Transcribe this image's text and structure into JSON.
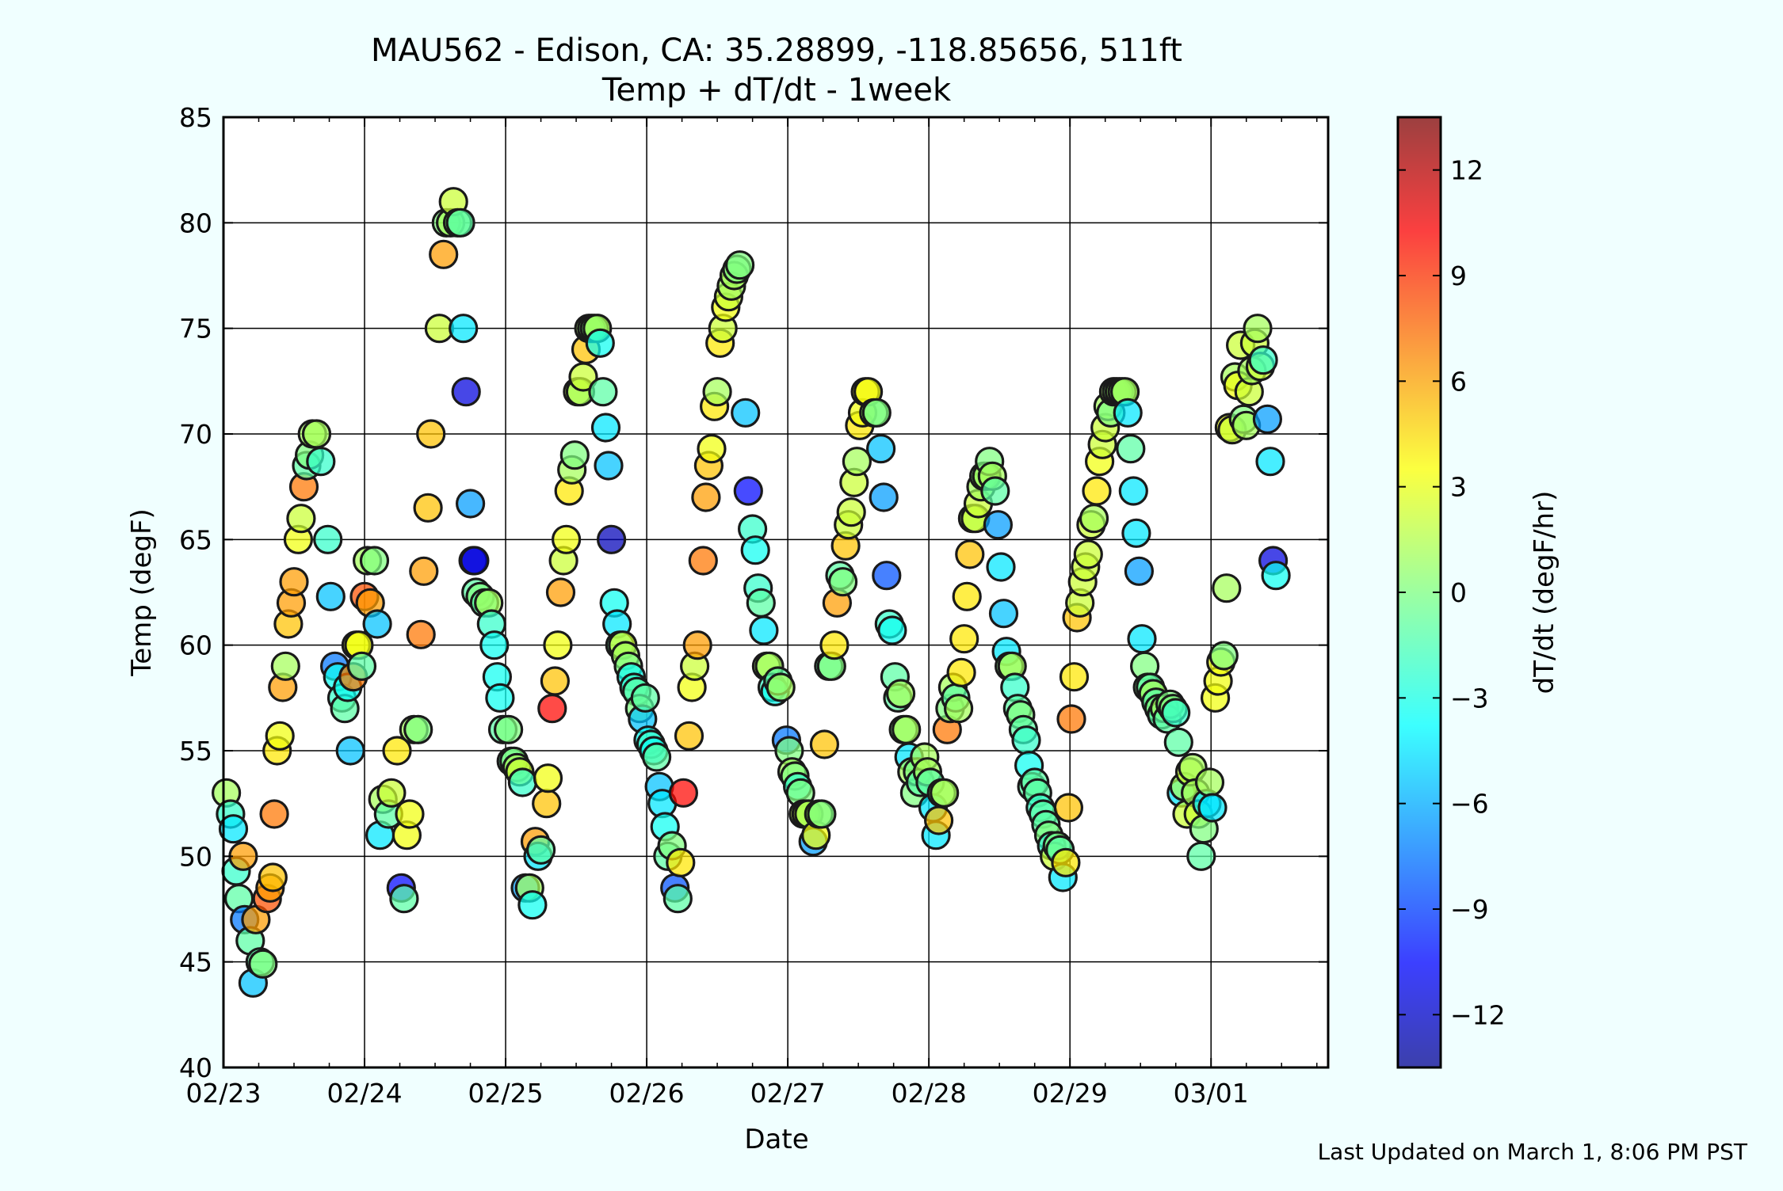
{
  "chart_data": {
    "type": "scatter",
    "title": "MAU562 - Edison, CA: 35.28899, -118.85656, 511ft",
    "subtitle": "Temp + dT/dt - 1week",
    "xlabel": "Date",
    "ylabel": "Temp (degF)",
    "colorbar_label": "dT/dt (degF/hr)",
    "footer": "Last Updated on March 1, 8:06 PM PST",
    "x_ticks": [
      "02/23",
      "02/24",
      "02/25",
      "02/26",
      "02/27",
      "02/28",
      "02/29",
      "03/01"
    ],
    "xlim_days": [
      0,
      7.83
    ],
    "ylim": [
      40,
      85
    ],
    "y_ticks": [
      40,
      45,
      50,
      55,
      60,
      65,
      70,
      75,
      80,
      85
    ],
    "colorbar_range": [
      -13.5,
      13.5
    ],
    "colorbar_ticks": [
      -12,
      -9,
      -6,
      -3,
      0,
      3,
      6,
      9,
      12
    ],
    "colorbar_tick_labels": [
      "−12",
      "−9",
      "−6",
      "−3",
      "0",
      "3",
      "6",
      "9",
      "12"
    ],
    "colormap": "jet",
    "grid": true,
    "points": [
      [
        0.02,
        53,
        1
      ],
      [
        0.05,
        52,
        -2
      ],
      [
        0.07,
        51.3,
        -4
      ],
      [
        0.09,
        49.3,
        -2
      ],
      [
        0.11,
        48,
        -1
      ],
      [
        0.14,
        50,
        6
      ],
      [
        0.15,
        47,
        -7
      ],
      [
        0.19,
        46,
        -1
      ],
      [
        0.21,
        44,
        -5
      ],
      [
        0.23,
        47,
        6
      ],
      [
        0.26,
        45,
        -1
      ],
      [
        0.28,
        44.9,
        0
      ],
      [
        0.31,
        48,
        8
      ],
      [
        0.33,
        48.5,
        6
      ],
      [
        0.35,
        49,
        5
      ],
      [
        0.36,
        52,
        7
      ],
      [
        0.38,
        55,
        4
      ],
      [
        0.4,
        55.7,
        3
      ],
      [
        0.42,
        58,
        6
      ],
      [
        0.44,
        59,
        1
      ],
      [
        0.46,
        61,
        5
      ],
      [
        0.48,
        62,
        6
      ],
      [
        0.5,
        63,
        6
      ],
      [
        0.53,
        65,
        3
      ],
      [
        0.55,
        66,
        2
      ],
      [
        0.57,
        67.5,
        7
      ],
      [
        0.59,
        68.5,
        -1
      ],
      [
        0.61,
        69,
        0
      ],
      [
        0.63,
        70,
        1
      ],
      [
        0.66,
        70,
        1
      ],
      [
        0.69,
        68.7,
        -2
      ],
      [
        0.74,
        65,
        -2
      ],
      [
        0.76,
        62.3,
        -5
      ],
      [
        0.79,
        59,
        -7
      ],
      [
        0.81,
        58.5,
        -3
      ],
      [
        0.84,
        57.5,
        -2
      ],
      [
        0.86,
        57,
        -1
      ],
      [
        0.88,
        58,
        -3
      ],
      [
        0.9,
        55,
        -5
      ],
      [
        0.92,
        58.5,
        7
      ],
      [
        0.94,
        60,
        3
      ],
      [
        0.96,
        60,
        3
      ],
      [
        0.98,
        59,
        -1
      ],
      [
        1.0,
        62.3,
        8
      ],
      [
        1.02,
        64,
        1
      ],
      [
        1.04,
        62,
        6
      ],
      [
        1.07,
        64,
        0
      ],
      [
        1.09,
        61,
        -5
      ],
      [
        1.11,
        51,
        -4
      ],
      [
        1.13,
        52.7,
        1
      ],
      [
        1.17,
        52,
        -1
      ],
      [
        1.19,
        53,
        2
      ],
      [
        1.23,
        55,
        4
      ],
      [
        1.26,
        48.5,
        -10
      ],
      [
        1.28,
        48,
        -1
      ],
      [
        1.3,
        51,
        3
      ],
      [
        1.32,
        52,
        3
      ],
      [
        1.35,
        56,
        1
      ],
      [
        1.38,
        56,
        0
      ],
      [
        1.4,
        60.5,
        7
      ],
      [
        1.42,
        63.5,
        6
      ],
      [
        1.45,
        66.5,
        5
      ],
      [
        1.47,
        70,
        5
      ],
      [
        1.53,
        75,
        2
      ],
      [
        1.56,
        78.5,
        6
      ],
      [
        1.58,
        80,
        0
      ],
      [
        1.61,
        80,
        1
      ],
      [
        1.63,
        81,
        2
      ],
      [
        1.66,
        80,
        0
      ],
      [
        1.68,
        80,
        -1
      ],
      [
        1.7,
        75,
        -4
      ],
      [
        1.72,
        72,
        -11
      ],
      [
        1.75,
        66.7,
        -6
      ],
      [
        1.77,
        64,
        -11
      ],
      [
        1.78,
        64,
        -11
      ],
      [
        1.79,
        62.5,
        -1
      ],
      [
        1.82,
        62.3,
        0
      ],
      [
        1.85,
        62,
        -1
      ],
      [
        1.88,
        62,
        1
      ],
      [
        1.9,
        61,
        -2
      ],
      [
        1.92,
        60,
        -3
      ],
      [
        1.94,
        58.5,
        -3
      ],
      [
        1.96,
        57.5,
        -3
      ],
      [
        1.98,
        56,
        -1
      ],
      [
        2.02,
        56,
        0
      ],
      [
        2.04,
        54.5,
        -1
      ],
      [
        2.06,
        54.5,
        0
      ],
      [
        2.08,
        54.2,
        1
      ],
      [
        2.1,
        54,
        2
      ],
      [
        2.12,
        53.5,
        -2
      ],
      [
        2.14,
        48.5,
        -6
      ],
      [
        2.17,
        48.5,
        1
      ],
      [
        2.19,
        47.7,
        -3
      ],
      [
        2.21,
        50.7,
        6
      ],
      [
        2.23,
        50,
        -4
      ],
      [
        2.25,
        50.3,
        -1
      ],
      [
        2.29,
        52.5,
        5
      ],
      [
        2.3,
        53.7,
        3
      ],
      [
        2.33,
        57,
        10
      ],
      [
        2.35,
        58.3,
        5
      ],
      [
        2.37,
        60,
        3
      ],
      [
        2.39,
        62.5,
        6
      ],
      [
        2.41,
        64,
        2
      ],
      [
        2.43,
        65,
        3
      ],
      [
        2.45,
        67.3,
        4
      ],
      [
        2.47,
        68.3,
        1
      ],
      [
        2.49,
        69,
        0
      ],
      [
        2.51,
        72,
        2
      ],
      [
        2.53,
        72,
        1
      ],
      [
        2.55,
        72.7,
        2
      ],
      [
        2.57,
        74,
        5
      ],
      [
        2.59,
        75,
        1
      ],
      [
        2.61,
        75,
        0
      ],
      [
        2.63,
        75,
        0
      ],
      [
        2.65,
        75,
        1
      ],
      [
        2.67,
        74.3,
        -3
      ],
      [
        2.69,
        72,
        -1
      ],
      [
        2.71,
        70.3,
        -4
      ],
      [
        2.73,
        68.5,
        -5
      ],
      [
        2.75,
        65,
        -12
      ],
      [
        2.77,
        62,
        -3
      ],
      [
        2.79,
        61,
        -4
      ],
      [
        2.81,
        60,
        -1
      ],
      [
        2.83,
        60,
        2
      ],
      [
        2.85,
        59.5,
        1
      ],
      [
        2.87,
        59,
        0
      ],
      [
        2.89,
        58.5,
        -3
      ],
      [
        2.91,
        58,
        -2
      ],
      [
        2.93,
        57.8,
        -1
      ],
      [
        2.95,
        57,
        0
      ],
      [
        2.97,
        56.5,
        -5
      ],
      [
        2.99,
        57.5,
        -1
      ],
      [
        3.01,
        55.5,
        -3
      ],
      [
        3.03,
        55.3,
        -2
      ],
      [
        3.05,
        55,
        -3
      ],
      [
        3.07,
        54.7,
        -1
      ],
      [
        3.09,
        53.3,
        -5
      ],
      [
        3.11,
        52.5,
        -4
      ],
      [
        3.13,
        51.4,
        -3
      ],
      [
        3.15,
        50,
        -1
      ],
      [
        3.18,
        50.5,
        0
      ],
      [
        3.2,
        48.5,
        -8
      ],
      [
        3.22,
        48,
        -1
      ],
      [
        3.24,
        49.7,
        4
      ],
      [
        3.26,
        53,
        10
      ],
      [
        3.3,
        55.7,
        5
      ],
      [
        3.32,
        58,
        3
      ],
      [
        3.34,
        59,
        2
      ],
      [
        3.36,
        60,
        6
      ],
      [
        3.4,
        64,
        7
      ],
      [
        3.42,
        67,
        6
      ],
      [
        3.44,
        68.5,
        5
      ],
      [
        3.46,
        69.3,
        3
      ],
      [
        3.48,
        71.3,
        4
      ],
      [
        3.5,
        72,
        1
      ],
      [
        3.52,
        74.3,
        4
      ],
      [
        3.54,
        75,
        2
      ],
      [
        3.56,
        76,
        3
      ],
      [
        3.58,
        76.5,
        2
      ],
      [
        3.6,
        77,
        1
      ],
      [
        3.62,
        77.5,
        1
      ],
      [
        3.64,
        77.8,
        0
      ],
      [
        3.66,
        78,
        0
      ],
      [
        3.7,
        71,
        -5
      ],
      [
        3.72,
        67.3,
        -10
      ],
      [
        3.75,
        65.5,
        -2
      ],
      [
        3.77,
        64.5,
        -3
      ],
      [
        3.79,
        62.7,
        -2
      ],
      [
        3.81,
        62,
        -1
      ],
      [
        3.83,
        60.7,
        -4
      ],
      [
        3.85,
        59,
        1
      ],
      [
        3.87,
        59,
        1
      ],
      [
        3.89,
        58,
        -2
      ],
      [
        3.91,
        57.8,
        -3
      ],
      [
        3.93,
        58.3,
        -1
      ],
      [
        3.95,
        58,
        1
      ],
      [
        3.99,
        55.5,
        -7
      ],
      [
        4.01,
        55,
        0
      ],
      [
        4.03,
        54,
        1
      ],
      [
        4.05,
        53.8,
        0
      ],
      [
        4.07,
        53.3,
        -2
      ],
      [
        4.09,
        53,
        0
      ],
      [
        4.11,
        52,
        2
      ],
      [
        4.13,
        52,
        2
      ],
      [
        4.15,
        52,
        1
      ],
      [
        4.18,
        50.7,
        -6
      ],
      [
        4.2,
        51,
        3
      ],
      [
        4.22,
        52,
        1
      ],
      [
        4.24,
        52,
        0
      ],
      [
        4.26,
        55.3,
        5
      ],
      [
        4.29,
        59,
        -1
      ],
      [
        4.31,
        59,
        0
      ],
      [
        4.33,
        60,
        4
      ],
      [
        4.35,
        62,
        6
      ],
      [
        4.37,
        63.3,
        -1
      ],
      [
        4.39,
        63,
        0
      ],
      [
        4.41,
        64.7,
        5
      ],
      [
        4.43,
        65.7,
        2
      ],
      [
        4.45,
        66.3,
        2
      ],
      [
        4.47,
        67.7,
        2
      ],
      [
        4.49,
        68.7,
        1
      ],
      [
        4.51,
        70.4,
        4
      ],
      [
        4.53,
        71,
        3
      ],
      [
        4.55,
        72,
        4
      ],
      [
        4.57,
        72,
        3
      ],
      [
        4.61,
        71,
        0
      ],
      [
        4.63,
        71,
        0
      ],
      [
        4.66,
        69.3,
        -5
      ],
      [
        4.68,
        67,
        -6
      ],
      [
        4.7,
        63.3,
        -8
      ],
      [
        4.72,
        61,
        -2
      ],
      [
        4.74,
        60.7,
        -3
      ],
      [
        4.76,
        58.5,
        -1
      ],
      [
        4.78,
        57.5,
        -1
      ],
      [
        4.8,
        57.7,
        1
      ],
      [
        4.82,
        56,
        0
      ],
      [
        4.84,
        56,
        1
      ],
      [
        4.86,
        54.7,
        -4
      ],
      [
        4.88,
        54,
        1
      ],
      [
        4.9,
        53,
        0
      ],
      [
        4.92,
        54,
        0
      ],
      [
        4.94,
        53.5,
        -1
      ],
      [
        4.97,
        54.7,
        1
      ],
      [
        4.99,
        54,
        1
      ],
      [
        5.01,
        53.5,
        -1
      ],
      [
        5.03,
        52.3,
        -4
      ],
      [
        5.05,
        51,
        -4
      ],
      [
        5.07,
        51.7,
        5
      ],
      [
        5.09,
        53,
        1
      ],
      [
        5.11,
        53,
        1
      ],
      [
        5.13,
        56,
        7
      ],
      [
        5.15,
        57,
        0
      ],
      [
        5.17,
        58,
        1
      ],
      [
        5.19,
        57.5,
        -1
      ],
      [
        5.21,
        57,
        1
      ],
      [
        5.23,
        58.7,
        4
      ],
      [
        5.25,
        60.3,
        4
      ],
      [
        5.27,
        62.3,
        4
      ],
      [
        5.29,
        64.3,
        5
      ],
      [
        5.31,
        66,
        1
      ],
      [
        5.33,
        66,
        2
      ],
      [
        5.35,
        66.7,
        2
      ],
      [
        5.37,
        67.5,
        1
      ],
      [
        5.39,
        68,
        0
      ],
      [
        5.41,
        68,
        1
      ],
      [
        5.43,
        68.7,
        0
      ],
      [
        5.45,
        68,
        1
      ],
      [
        5.47,
        67.3,
        -1
      ],
      [
        5.49,
        65.7,
        -6
      ],
      [
        5.51,
        63.7,
        -4
      ],
      [
        5.53,
        61.5,
        -5
      ],
      [
        5.55,
        59.7,
        -4
      ],
      [
        5.57,
        59,
        0
      ],
      [
        5.59,
        59,
        1
      ],
      [
        5.61,
        58,
        -2
      ],
      [
        5.63,
        57,
        -1
      ],
      [
        5.65,
        56.7,
        0
      ],
      [
        5.67,
        56,
        -1
      ],
      [
        5.69,
        55.5,
        -2
      ],
      [
        5.71,
        54.3,
        -3
      ],
      [
        5.73,
        53.3,
        -1
      ],
      [
        5.75,
        53.5,
        -1
      ],
      [
        5.77,
        53,
        -1
      ],
      [
        5.79,
        52.3,
        -2
      ],
      [
        5.81,
        52,
        -1
      ],
      [
        5.83,
        51.5,
        -1
      ],
      [
        5.85,
        51,
        0
      ],
      [
        5.87,
        50.5,
        -2
      ],
      [
        5.89,
        50,
        2
      ],
      [
        5.91,
        50.5,
        0
      ],
      [
        5.93,
        50.3,
        -1
      ],
      [
        5.95,
        49,
        -4
      ],
      [
        5.97,
        49.7,
        4
      ],
      [
        5.99,
        52.3,
        5
      ],
      [
        6.01,
        56.5,
        7
      ],
      [
        6.03,
        58.5,
        4
      ],
      [
        6.05,
        61.3,
        5
      ],
      [
        6.07,
        62,
        2
      ],
      [
        6.09,
        63,
        2
      ],
      [
        6.11,
        63.7,
        2
      ],
      [
        6.13,
        64.3,
        2
      ],
      [
        6.15,
        65.7,
        2
      ],
      [
        6.17,
        66,
        1
      ],
      [
        6.19,
        67.3,
        4
      ],
      [
        6.21,
        68.7,
        3
      ],
      [
        6.23,
        69.5,
        2
      ],
      [
        6.25,
        70.3,
        2
      ],
      [
        6.27,
        71.3,
        1
      ],
      [
        6.29,
        71,
        0
      ],
      [
        6.31,
        72,
        1
      ],
      [
        6.33,
        72,
        0
      ],
      [
        6.35,
        72,
        1
      ],
      [
        6.37,
        72,
        0
      ],
      [
        6.39,
        72,
        1
      ],
      [
        6.41,
        71,
        -4
      ],
      [
        6.43,
        69.3,
        -1
      ],
      [
        6.45,
        67.3,
        -4
      ],
      [
        6.47,
        65.3,
        -4
      ],
      [
        6.49,
        63.5,
        -6
      ],
      [
        6.51,
        60.3,
        -4
      ],
      [
        6.53,
        59,
        0
      ],
      [
        6.55,
        58,
        0
      ],
      [
        6.57,
        58,
        -1
      ],
      [
        6.59,
        57.7,
        1
      ],
      [
        6.61,
        57.3,
        -1
      ],
      [
        6.63,
        57,
        0
      ],
      [
        6.65,
        56.7,
        -1
      ],
      [
        6.67,
        57,
        1
      ],
      [
        6.69,
        56.5,
        -1
      ],
      [
        6.71,
        57.2,
        0
      ],
      [
        6.73,
        57,
        0
      ],
      [
        6.75,
        56.8,
        -2
      ],
      [
        6.77,
        55.4,
        -1
      ],
      [
        6.79,
        53,
        -4
      ],
      [
        6.81,
        53.3,
        1
      ],
      [
        6.83,
        52,
        2
      ],
      [
        6.85,
        54,
        2
      ],
      [
        6.87,
        54.2,
        1
      ],
      [
        6.89,
        53,
        1
      ],
      [
        6.91,
        52,
        2
      ],
      [
        6.93,
        50,
        -1
      ],
      [
        6.95,
        51.3,
        0
      ],
      [
        6.97,
        52.5,
        -4
      ],
      [
        6.99,
        53.5,
        1
      ],
      [
        7.01,
        52.3,
        -4
      ],
      [
        7.03,
        57.5,
        3
      ],
      [
        7.05,
        58.3,
        3
      ],
      [
        7.07,
        59.2,
        3
      ],
      [
        7.09,
        59.5,
        0
      ],
      [
        7.11,
        62.7,
        1
      ],
      [
        7.13,
        70.3,
        3
      ],
      [
        7.15,
        70.2,
        2
      ],
      [
        7.17,
        72.7,
        1
      ],
      [
        7.19,
        72.3,
        3
      ],
      [
        7.21,
        74.2,
        2
      ],
      [
        7.23,
        70.7,
        0
      ],
      [
        7.25,
        70.4,
        1
      ],
      [
        7.27,
        72,
        2
      ],
      [
        7.29,
        73,
        1
      ],
      [
        7.31,
        74.3,
        2
      ],
      [
        7.33,
        75,
        1
      ],
      [
        7.35,
        73.2,
        2
      ],
      [
        7.37,
        73.5,
        -2
      ],
      [
        7.4,
        70.7,
        -6
      ],
      [
        7.42,
        68.7,
        -4
      ],
      [
        7.44,
        64,
        -11
      ],
      [
        7.46,
        63.3,
        -3
      ]
    ]
  }
}
